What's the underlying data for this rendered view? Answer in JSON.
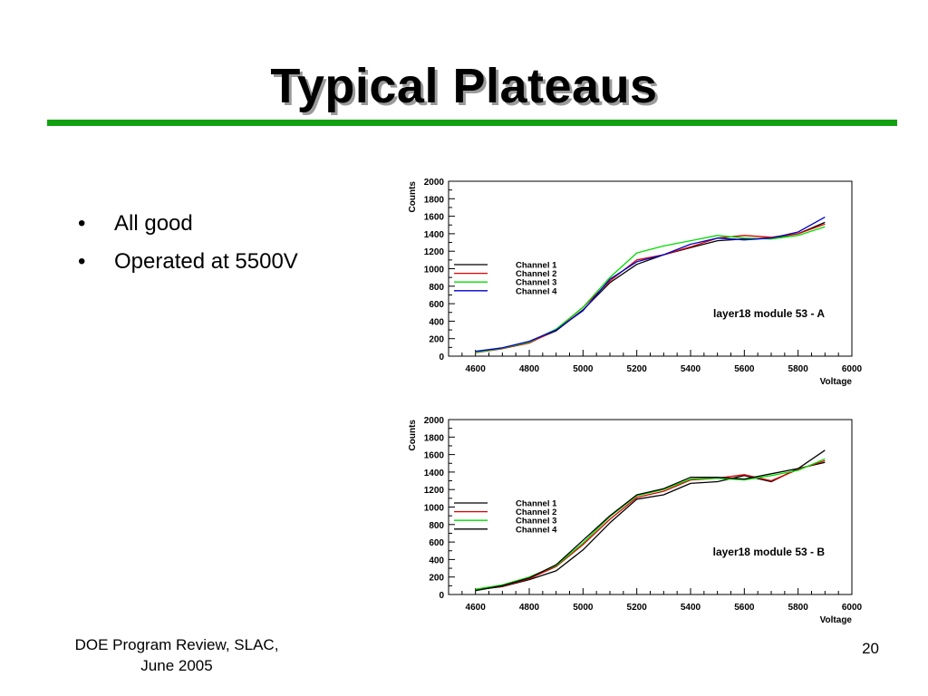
{
  "slide": {
    "title": "Typical Plateaus",
    "accent_color": "#12a012",
    "bullets": [
      "All good",
      "Operated at 5500V"
    ],
    "footer": {
      "left_line1": "DOE Program Review, SLAC,",
      "left_line2": "June 2005",
      "page_number": "20"
    }
  },
  "chart_data": [
    {
      "type": "line",
      "title": "layer18 module 53 - A",
      "xlabel": "Voltage",
      "ylabel": "Counts",
      "xlim": [
        4500,
        6000
      ],
      "ylim": [
        0,
        2000
      ],
      "xticks": [
        "4600",
        "4800",
        "5000",
        "5200",
        "5400",
        "5600",
        "5800",
        "6000"
      ],
      "yticks": [
        "0",
        "200",
        "400",
        "600",
        "800",
        "1000",
        "1200",
        "1400",
        "1600",
        "1800",
        "2000"
      ],
      "legend_position": "middle-left",
      "x": [
        4600,
        4700,
        4800,
        4900,
        5000,
        5100,
        5200,
        5300,
        5400,
        5500,
        5600,
        5700,
        5800,
        5900
      ],
      "series": [
        {
          "name": "Channel 1",
          "color": "#000000",
          "values": [
            50,
            90,
            160,
            290,
            530,
            840,
            1050,
            1160,
            1240,
            1320,
            1340,
            1350,
            1400,
            1530
          ]
        },
        {
          "name": "Channel 2",
          "color": "#e00000",
          "values": [
            40,
            85,
            150,
            300,
            560,
            860,
            1100,
            1160,
            1250,
            1350,
            1380,
            1360,
            1400,
            1510
          ]
        },
        {
          "name": "Channel 3",
          "color": "#00dd00",
          "values": [
            45,
            90,
            160,
            310,
            560,
            900,
            1180,
            1260,
            1320,
            1380,
            1350,
            1340,
            1380,
            1480
          ]
        },
        {
          "name": "Channel 4",
          "color": "#0000cc",
          "values": [
            55,
            95,
            170,
            300,
            520,
            880,
            1080,
            1160,
            1280,
            1350,
            1330,
            1350,
            1420,
            1590
          ]
        }
      ]
    },
    {
      "type": "line",
      "title": "layer18 module 53 - B",
      "xlabel": "Voltage",
      "ylabel": "Counts",
      "xlim": [
        4500,
        6000
      ],
      "ylim": [
        0,
        2000
      ],
      "xticks": [
        "4600",
        "4800",
        "5000",
        "5200",
        "5400",
        "5600",
        "5800",
        "6000"
      ],
      "yticks": [
        "0",
        "200",
        "400",
        "600",
        "800",
        "1000",
        "1200",
        "1400",
        "1600",
        "1800",
        "2000"
      ],
      "legend_position": "middle-left",
      "x": [
        4600,
        4700,
        4800,
        4900,
        5000,
        5100,
        5200,
        5300,
        5400,
        5500,
        5600,
        5700,
        5800,
        5900
      ],
      "series": [
        {
          "name": "Channel 1",
          "color": "#000000",
          "values": [
            55,
            90,
            170,
            270,
            510,
            820,
            1090,
            1140,
            1270,
            1290,
            1360,
            1290,
            1440,
            1510
          ]
        },
        {
          "name": "Channel 2",
          "color": "#e00000",
          "values": [
            50,
            95,
            180,
            320,
            570,
            860,
            1110,
            1180,
            1310,
            1330,
            1370,
            1300,
            1430,
            1530
          ]
        },
        {
          "name": "Channel 3",
          "color": "#00dd00",
          "values": [
            60,
            110,
            200,
            330,
            590,
            890,
            1130,
            1200,
            1320,
            1330,
            1310,
            1360,
            1420,
            1550
          ]
        },
        {
          "name": "Channel 4",
          "color": "#000000",
          "values": [
            45,
            100,
            190,
            340,
            620,
            900,
            1140,
            1210,
            1340,
            1340,
            1320,
            1380,
            1440,
            1650
          ]
        }
      ]
    }
  ]
}
